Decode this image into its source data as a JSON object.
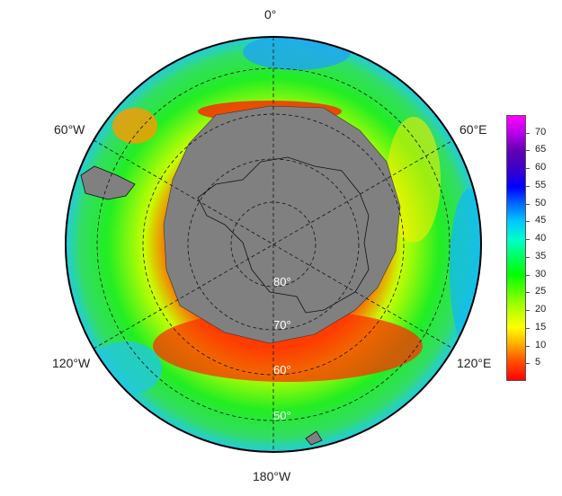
{
  "map": {
    "projection": "south-polar-stereographic",
    "longitude_labels": {
      "top": "0°",
      "upper_left": "60°W",
      "upper_right": "60°E",
      "lower_left": "120°W",
      "lower_right": "120°E",
      "bottom": "180°W"
    },
    "latitude_labels": [
      "80°",
      "70°",
      "60°",
      "50°"
    ],
    "land_color": "#808080",
    "grid_style": "dashed"
  },
  "colorbar": {
    "ticks": [
      "70",
      "65",
      "60",
      "55",
      "50",
      "45",
      "40",
      "35",
      "30",
      "25",
      "20",
      "15",
      "10",
      "5"
    ],
    "min": 0,
    "max": 75,
    "palette": [
      "#ff0000",
      "#ffff00",
      "#00ff00",
      "#00ffff",
      "#0000ff",
      "#ff00ff"
    ]
  }
}
